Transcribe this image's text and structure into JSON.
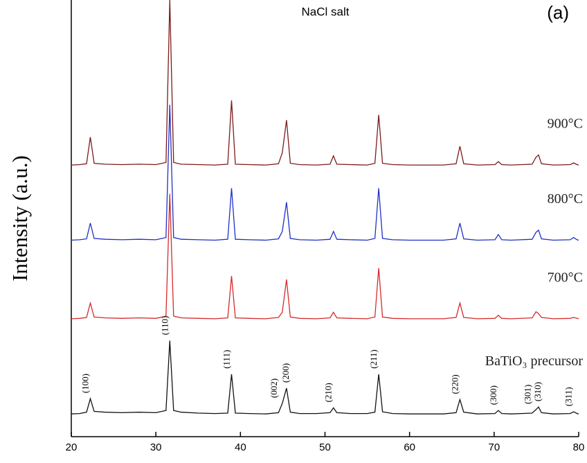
{
  "chart_data": {
    "type": "line",
    "title": "NaCl salt",
    "panel_label": "(a)",
    "ylabel": "Intensity (a.u.)",
    "x": [
      20,
      21,
      21.8,
      22.25,
      22.7,
      24,
      26,
      28,
      30,
      31.2,
      31.65,
      32.1,
      33,
      35,
      37,
      38.5,
      38.95,
      39.4,
      41,
      43,
      44.5,
      44.95,
      45.45,
      45.9,
      47,
      49,
      50.6,
      51,
      51.4,
      53,
      55,
      55.9,
      56.35,
      56.8,
      58,
      60,
      62,
      64,
      65.5,
      65.95,
      66.4,
      68,
      70.1,
      70.5,
      70.9,
      72,
      74.5,
      74.95,
      75.25,
      75.6,
      77,
      79,
      79.4,
      79.8,
      80
    ],
    "series": [
      {
        "name": "BaTiO₃ precursor",
        "color": "#111111",
        "values": [
          5.2,
          5.3,
          5.6,
          8.7,
          5.8,
          5.6,
          5.5,
          5.6,
          5.5,
          6,
          22,
          6,
          5.6,
          5.4,
          5.3,
          5.4,
          14.3,
          5.4,
          5.3,
          5.2,
          5.5,
          7.6,
          11.1,
          5.6,
          5.3,
          5.3,
          5.5,
          6.6,
          5.5,
          5.3,
          5.3,
          5.6,
          14.3,
          5.7,
          5.3,
          5.2,
          5.2,
          5.2,
          5.5,
          8.5,
          5.6,
          5.2,
          5.3,
          6,
          5.3,
          5.2,
          5.4,
          6.2,
          6.8,
          5.5,
          5.2,
          5.3,
          5.7,
          5.3,
          5.2
        ]
      },
      {
        "name": "700°C",
        "color": "#d42a2a",
        "values": [
          27,
          27.1,
          27.3,
          30.6,
          27.4,
          27.2,
          27.1,
          27.2,
          27.1,
          27.6,
          55.6,
          27.6,
          27.2,
          27.1,
          27,
          27.2,
          36.8,
          27.2,
          27.1,
          27,
          27.3,
          28.5,
          36,
          27.4,
          27.1,
          27,
          27.2,
          28.5,
          27.2,
          27.1,
          27,
          27.4,
          38.6,
          27.4,
          27.1,
          27,
          27,
          27,
          27.3,
          30.6,
          27.3,
          27,
          27.1,
          27.8,
          27.1,
          27,
          27.2,
          28.6,
          28.2,
          27.3,
          27,
          27.1,
          27.3,
          27.1,
          27
        ]
      },
      {
        "name": "800°C",
        "color": "#1f2fc4",
        "values": [
          45,
          45.1,
          45.3,
          48.9,
          45.4,
          45.2,
          45.1,
          45.2,
          45.1,
          45.6,
          76,
          45.6,
          45.2,
          45.1,
          45,
          45.2,
          56.9,
          45.2,
          45.1,
          45,
          45.3,
          47,
          53.7,
          45.4,
          45.1,
          45,
          45.2,
          47,
          45.2,
          45.1,
          45,
          45.4,
          56.9,
          45.4,
          45.1,
          45,
          45,
          45,
          45.3,
          48.9,
          45.3,
          45,
          45.1,
          46.3,
          45.1,
          45,
          45.2,
          46.8,
          47.3,
          45.3,
          45,
          45.1,
          45.6,
          45.1,
          45
        ]
      },
      {
        "name": "900°C",
        "color": "#7a1a1a",
        "values": [
          62.2,
          62.3,
          62.5,
          68.6,
          62.6,
          62.4,
          62.3,
          62.4,
          62.3,
          62.8,
          100,
          62.8,
          62.4,
          62.3,
          62.2,
          62.4,
          77,
          62.4,
          62.3,
          62.2,
          62.5,
          65,
          72.5,
          62.6,
          62.3,
          62.2,
          62.4,
          64.3,
          62.4,
          62.3,
          62.2,
          62.6,
          73.7,
          62.6,
          62.3,
          62.2,
          62.2,
          62.2,
          62.5,
          66.5,
          62.5,
          62.2,
          62.3,
          63,
          62.3,
          62.2,
          62.4,
          64,
          64.5,
          62.5,
          62.2,
          62.3,
          62.7,
          62.3,
          62.2
        ]
      }
    ],
    "peak_labels": [
      {
        "label": "(100)",
        "x": 22.25
      },
      {
        "label": "(110)",
        "x": 31.65
      },
      {
        "label": "(111)",
        "x": 38.95
      },
      {
        "label": "(002)",
        "x": 44.95
      },
      {
        "label": "(200)",
        "x": 45.45
      },
      {
        "label": "(210)",
        "x": 51
      },
      {
        "label": "(211)",
        "x": 56.35
      },
      {
        "label": "(220)",
        "x": 65.95
      },
      {
        "label": "(300)",
        "x": 70.5
      },
      {
        "label": "(301)",
        "x": 74.95
      },
      {
        "label": "(310)",
        "x": 75.25
      },
      {
        "label": "(311)",
        "x": 79.4
      }
    ],
    "xlim": [
      20,
      80
    ],
    "xticks": [
      20,
      30,
      40,
      50,
      60,
      70,
      80
    ],
    "ylim": [
      0,
      100
    ]
  }
}
